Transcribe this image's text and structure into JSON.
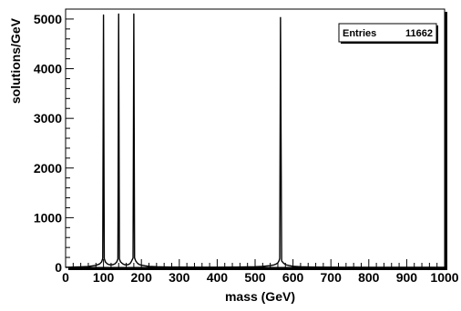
{
  "chart_data": {
    "type": "line",
    "title": "",
    "xlabel": "mass (GeV)",
    "ylabel": "solutions/GeV",
    "xlim": [
      0,
      1000
    ],
    "ylim": [
      0,
      5200
    ],
    "x_ticks": [
      0,
      100,
      200,
      300,
      400,
      500,
      600,
      700,
      800,
      900,
      1000
    ],
    "y_ticks": [
      0,
      1000,
      2000,
      3000,
      4000,
      5000
    ],
    "grid": false,
    "legend": "none",
    "stats_box": {
      "label": "Entries",
      "value": "11662",
      "position": "top-right"
    },
    "series": [
      {
        "color": "#000000",
        "x": [
          0,
          20,
          40,
          60,
          80,
          90,
          95,
          98,
          100,
          102,
          105,
          110,
          115,
          120,
          125,
          130,
          135,
          138,
          140,
          142,
          145,
          150,
          155,
          160,
          165,
          170,
          173,
          175,
          178,
          180,
          182,
          185,
          190,
          195,
          200,
          210,
          220,
          240,
          260,
          280,
          300,
          350,
          400,
          450,
          500,
          520,
          540,
          550,
          555,
          560,
          563,
          565,
          567,
          570,
          575,
          580,
          590,
          600,
          620,
          650,
          700,
          800,
          900,
          1000
        ],
        "y": [
          0,
          5,
          10,
          18,
          40,
          70,
          110,
          180,
          5080,
          180,
          110,
          70,
          55,
          50,
          55,
          70,
          110,
          170,
          5100,
          170,
          110,
          75,
          55,
          50,
          55,
          75,
          110,
          140,
          190,
          5100,
          190,
          130,
          80,
          55,
          45,
          30,
          20,
          12,
          8,
          6,
          5,
          3,
          3,
          6,
          12,
          20,
          35,
          50,
          65,
          90,
          130,
          180,
          5030,
          130,
          85,
          55,
          35,
          22,
          12,
          6,
          3,
          1,
          0,
          0
        ]
      }
    ]
  }
}
